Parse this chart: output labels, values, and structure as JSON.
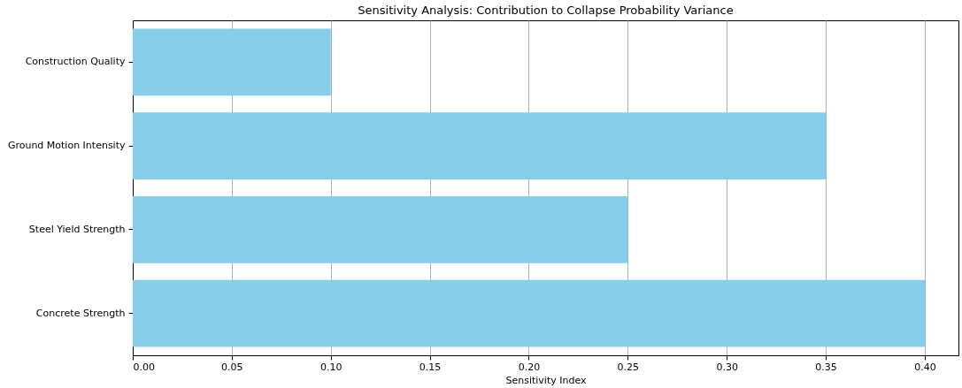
{
  "chart_data": {
    "type": "bar",
    "orientation": "horizontal",
    "title": "Sensitivity Analysis: Contribution to Collapse Probability Variance",
    "xlabel": "Sensitivity Index",
    "categories": [
      "Construction Quality",
      "Ground Motion Intensity",
      "Steel Yield Strength",
      "Concrete Strength"
    ],
    "values": [
      0.1,
      0.35,
      0.25,
      0.4
    ],
    "color": "#87ceeb",
    "xlim": [
      0,
      0.417
    ],
    "xticks": [
      {
        "value": 0,
        "label": "0.00"
      },
      {
        "value": 0.05,
        "label": "0.05"
      },
      {
        "value": 0.1,
        "label": "0.10"
      },
      {
        "value": 0.15,
        "label": "0.15"
      },
      {
        "value": 0.2,
        "label": "0.20"
      },
      {
        "value": 0.25,
        "label": "0.25"
      },
      {
        "value": 0.3,
        "label": "0.30"
      },
      {
        "value": 0.35,
        "label": "0.35"
      },
      {
        "value": 0.4,
        "label": "0.40"
      }
    ],
    "grid": "x"
  }
}
